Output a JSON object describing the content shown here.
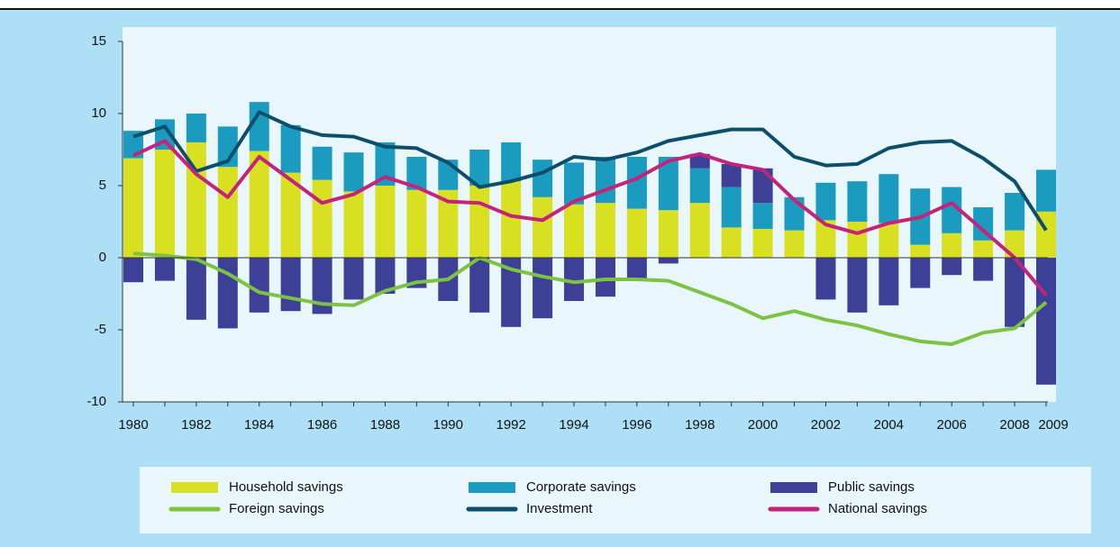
{
  "chart_data": {
    "type": "bar-line",
    "categories": [
      "1980",
      null,
      "1982",
      null,
      "1984",
      null,
      "1986",
      null,
      "1988",
      null,
      "1990",
      null,
      "1992",
      null,
      "1994",
      null,
      "1996",
      null,
      "1998",
      null,
      "2000",
      null,
      "2002",
      null,
      "2004",
      null,
      "2006",
      null,
      "2008",
      "2009"
    ],
    "series": [
      {
        "name": "Household savings",
        "kind": "bar",
        "color": "#d9e021",
        "values": [
          6.9,
          7.5,
          8.0,
          6.3,
          7.4,
          5.9,
          5.4,
          4.6,
          5.0,
          4.7,
          4.7,
          5.0,
          5.3,
          4.2,
          3.7,
          3.8,
          3.4,
          3.3,
          3.8,
          2.1,
          2.0,
          1.9,
          2.6,
          2.5,
          2.4,
          0.9,
          1.7,
          1.2,
          1.9,
          3.2
        ]
      },
      {
        "name": "Corporate savings",
        "kind": "bar",
        "color": "#1b9bc0",
        "values": [
          1.9,
          2.1,
          2.0,
          2.8,
          3.4,
          3.3,
          2.3,
          2.7,
          3.0,
          2.3,
          2.1,
          2.5,
          2.7,
          2.6,
          2.9,
          3.2,
          3.6,
          3.7,
          2.4,
          2.8,
          1.8,
          2.3,
          2.6,
          2.8,
          3.4,
          3.9,
          3.2,
          2.3,
          2.6,
          2.9
        ]
      },
      {
        "name": "Public savings",
        "kind": "bar",
        "color": "#3c4197",
        "values": [
          -1.7,
          -1.6,
          -4.3,
          -4.9,
          -3.8,
          -3.7,
          -3.9,
          -2.9,
          -2.5,
          -2.1,
          -3.0,
          -3.8,
          -4.8,
          -4.2,
          -3.0,
          -2.7,
          -1.5,
          -0.4,
          1.0,
          1.6,
          2.4,
          0,
          -2.9,
          -3.8,
          -3.3,
          -2.1,
          -1.2,
          -1.6,
          -4.8,
          -8.8
        ]
      },
      {
        "name": "Foreign savings",
        "kind": "line",
        "color": "#7dc242",
        "values": [
          0.3,
          0.15,
          -0.1,
          -1.1,
          -2.4,
          -2.8,
          -3.2,
          -3.3,
          -2.3,
          -1.7,
          -1.5,
          0.0,
          -0.8,
          -1.3,
          -1.7,
          -1.5,
          -1.5,
          -1.6,
          -2.4,
          -3.2,
          -4.2,
          -3.7,
          -4.3,
          -4.7,
          -5.3,
          -5.8,
          -6.0,
          -5.2,
          -4.9,
          -3.1
        ]
      },
      {
        "name": "Investment",
        "kind": "line",
        "color": "#0b4f6c",
        "values": [
          8.4,
          9.1,
          6.0,
          6.7,
          10.1,
          9.1,
          8.5,
          8.4,
          7.7,
          7.6,
          6.6,
          4.9,
          5.3,
          5.9,
          7.0,
          6.8,
          7.3,
          8.1,
          8.5,
          8.9,
          8.9,
          7.0,
          6.4,
          6.5,
          7.6,
          8.0,
          8.1,
          6.9,
          5.3,
          1.9
        ]
      },
      {
        "name": "National savings",
        "kind": "line",
        "color": "#c4237c",
        "values": [
          7.1,
          8.1,
          5.8,
          4.2,
          7.0,
          5.4,
          3.8,
          4.4,
          5.6,
          4.9,
          3.9,
          3.8,
          2.9,
          2.6,
          3.9,
          4.7,
          5.5,
          6.7,
          7.2,
          6.5,
          6.1,
          4.0,
          2.3,
          1.7,
          2.4,
          2.8,
          3.8,
          1.9,
          0.0,
          -2.6
        ]
      }
    ],
    "ylim": [
      -10,
      15
    ],
    "yticks": [
      15,
      10,
      5,
      0,
      -5,
      -10
    ],
    "legend": "bottom"
  }
}
